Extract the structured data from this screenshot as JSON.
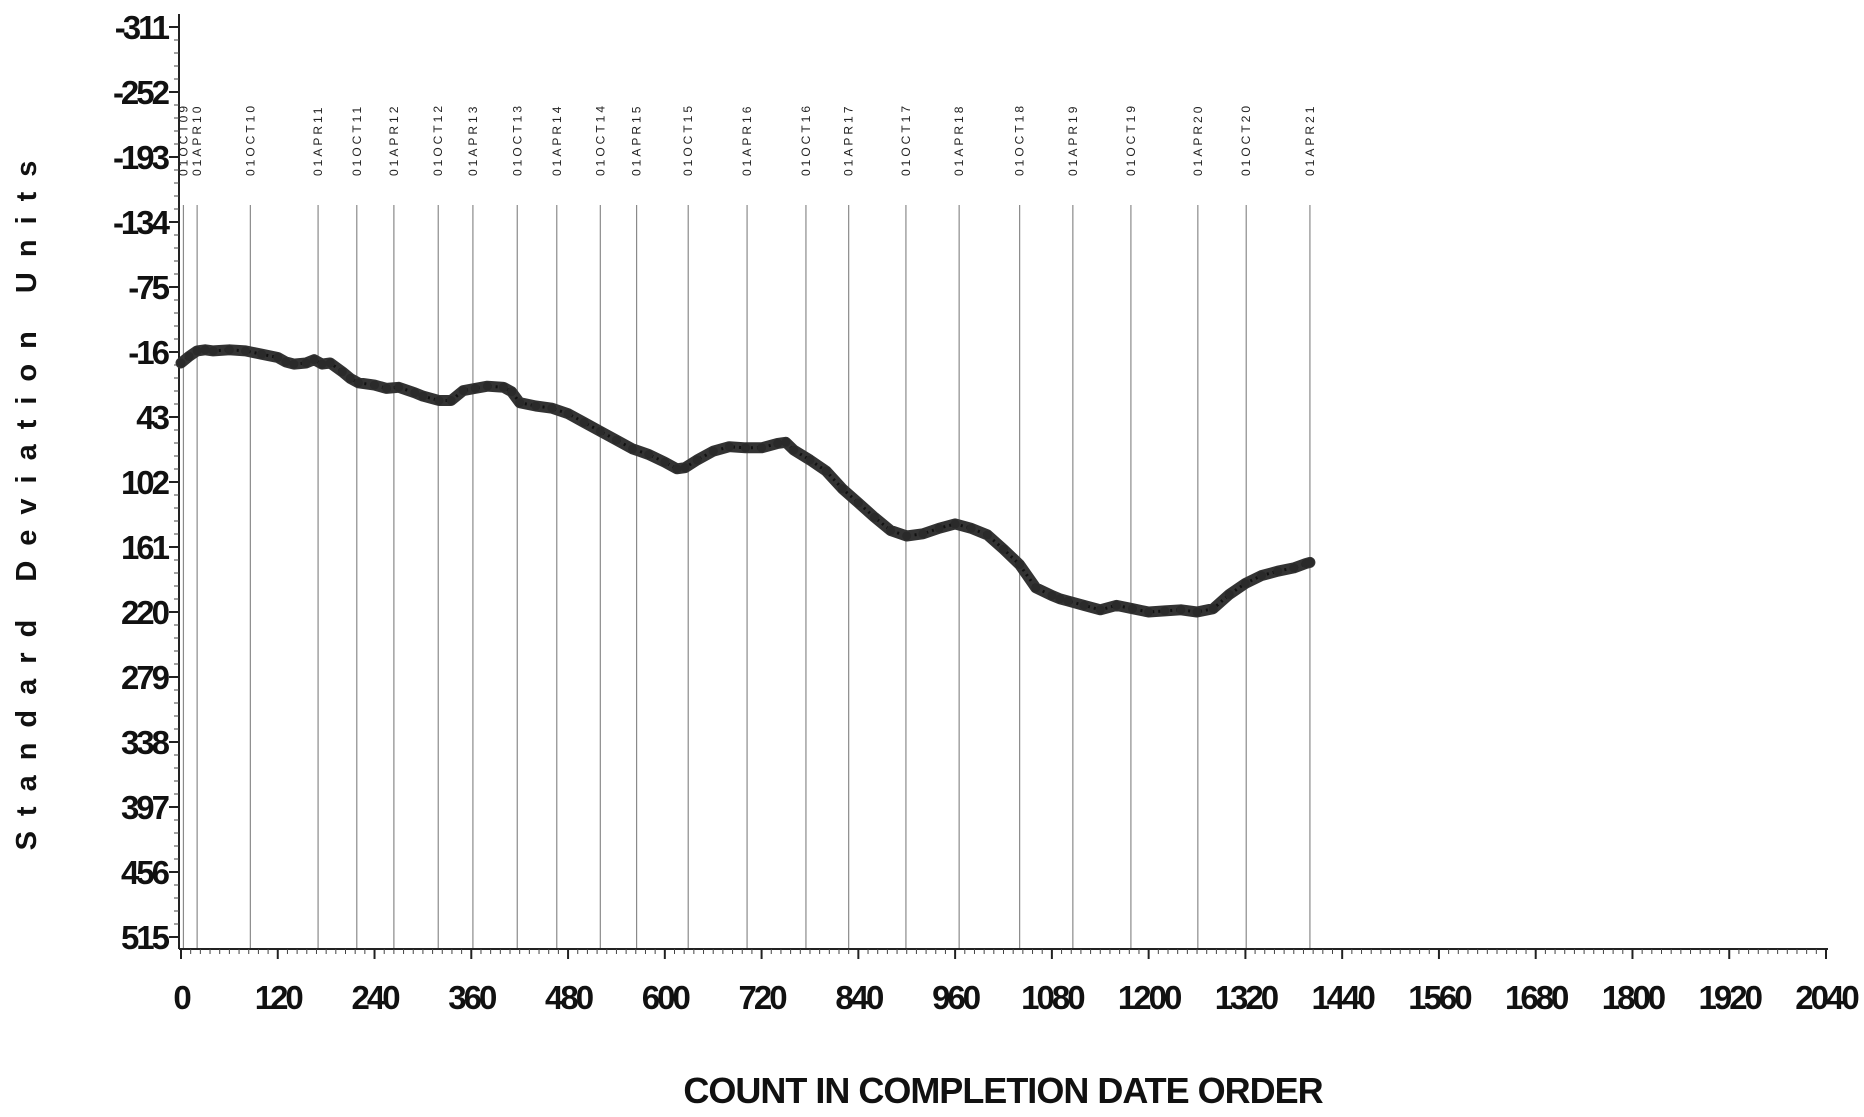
{
  "chart_data": {
    "type": "line",
    "title": "",
    "xlabel": "COUNT IN COMPLETION DATE ORDER",
    "ylabel": "Standard Deviation Units",
    "xlim": [
      0,
      2040
    ],
    "ylim": [
      -311,
      515
    ],
    "y_inverted": true,
    "x_ticks": [
      0,
      120,
      240,
      360,
      480,
      600,
      720,
      840,
      960,
      1080,
      1200,
      1320,
      1440,
      1560,
      1680,
      1800,
      1920,
      2040
    ],
    "x_tick_labels": [
      "0",
      "120",
      "240",
      "360",
      "480",
      "600",
      "720",
      "840",
      "960",
      "1080",
      "1200",
      "1320",
      "1440",
      "1560",
      "1680",
      "1800",
      "1920",
      "2040"
    ],
    "y_ticks": [
      -311,
      -252,
      -193,
      -134,
      -75,
      -16,
      43,
      102,
      161,
      220,
      279,
      338,
      397,
      456,
      515
    ],
    "y_tick_labels": [
      "-311",
      "-252",
      "-193",
      "-134",
      "-75",
      "-16",
      "43",
      "102",
      "161",
      "220",
      "279",
      "338",
      "397",
      "456",
      "515"
    ],
    "grid": false,
    "legend": "none",
    "line_color": "#333333",
    "reference_lines": [
      {
        "x": 3,
        "label": "01OCT09"
      },
      {
        "x": 20,
        "label": "01APR10"
      },
      {
        "x": 86,
        "label": "01OCT10"
      },
      {
        "x": 170,
        "label": "01APR11"
      },
      {
        "x": 218,
        "label": "01OCT11"
      },
      {
        "x": 264,
        "label": "01APR12"
      },
      {
        "x": 319,
        "label": "01OCT12"
      },
      {
        "x": 362,
        "label": "01APR13"
      },
      {
        "x": 417,
        "label": "01OCT13"
      },
      {
        "x": 466,
        "label": "01APR14"
      },
      {
        "x": 520,
        "label": "01OCT14"
      },
      {
        "x": 565,
        "label": "01APR15"
      },
      {
        "x": 629,
        "label": "01OCT15"
      },
      {
        "x": 702,
        "label": "01APR16"
      },
      {
        "x": 775,
        "label": "01OCT16"
      },
      {
        "x": 828,
        "label": "01APR17"
      },
      {
        "x": 899,
        "label": "01OCT17"
      },
      {
        "x": 965,
        "label": "01APR18"
      },
      {
        "x": 1040,
        "label": "01OCT18"
      },
      {
        "x": 1106,
        "label": "01APR19"
      },
      {
        "x": 1178,
        "label": "01OCT19"
      },
      {
        "x": 1261,
        "label": "01APR20"
      },
      {
        "x": 1321,
        "label": "01OCT20"
      },
      {
        "x": 1400,
        "label": "01APR21"
      }
    ],
    "series": [
      {
        "x": [
          0,
          10,
          20,
          30,
          40,
          60,
          80,
          100,
          120,
          130,
          140,
          155,
          165,
          175,
          185,
          200,
          210,
          220,
          240,
          255,
          270,
          290,
          300,
          320,
          335,
          350,
          365,
          380,
          400,
          410,
          420,
          440,
          460,
          480,
          500,
          520,
          540,
          560,
          580,
          600,
          615,
          625,
          640,
          660,
          680,
          700,
          720,
          740,
          750,
          760,
          780,
          800,
          820,
          840,
          860,
          880,
          900,
          920,
          940,
          960,
          980,
          1000,
          1020,
          1040,
          1060,
          1080,
          1090,
          1100,
          1120,
          1140,
          1160,
          1180,
          1200,
          1220,
          1240,
          1260,
          1280,
          1300,
          1320,
          1340,
          1360,
          1380,
          1395,
          1400
        ],
        "y": [
          -6,
          -12,
          -17,
          -18,
          -17,
          -18,
          -17,
          -14,
          -11,
          -7,
          -5,
          -6,
          -9,
          -5,
          -6,
          2,
          8,
          12,
          14,
          17,
          16,
          21,
          24,
          28,
          28,
          19,
          17,
          15,
          16,
          20,
          30,
          33,
          35,
          40,
          48,
          56,
          64,
          72,
          77,
          84,
          90,
          89,
          82,
          74,
          70,
          71,
          71,
          67,
          66,
          73,
          82,
          92,
          108,
          121,
          134,
          146,
          151,
          149,
          144,
          140,
          144,
          150,
          163,
          177,
          198,
          205,
          208,
          210,
          214,
          218,
          214,
          217,
          220,
          219,
          218,
          220,
          217,
          204,
          194,
          187,
          183,
          180,
          176,
          175
        ]
      }
    ]
  }
}
